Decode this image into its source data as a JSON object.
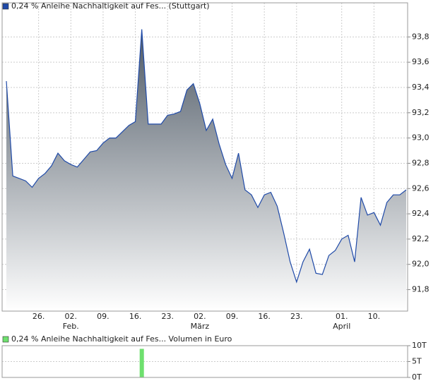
{
  "chart_data": [
    {
      "type": "area",
      "categories": [
        null,
        null,
        null,
        null,
        null,
        "26.",
        null,
        null,
        null,
        null,
        "02.",
        null,
        null,
        null,
        null,
        "09.",
        null,
        null,
        null,
        null,
        "16.",
        null,
        null,
        null,
        null,
        "23.",
        null,
        null,
        null,
        null,
        "02.",
        null,
        null,
        null,
        null,
        "09.",
        null,
        null,
        null,
        null,
        "16.",
        null,
        null,
        null,
        null,
        "23.",
        null,
        null,
        null,
        null,
        null,
        null,
        "01.",
        null,
        null,
        null,
        null,
        "10.",
        null,
        null,
        null,
        null,
        null
      ],
      "category_months": [
        null,
        null,
        null,
        null,
        null,
        null,
        null,
        null,
        null,
        null,
        "Feb.",
        null,
        null,
        null,
        null,
        null,
        null,
        null,
        null,
        null,
        null,
        null,
        null,
        null,
        null,
        null,
        null,
        null,
        null,
        null,
        "März",
        null,
        null,
        null,
        null,
        null,
        null,
        null,
        null,
        null,
        null,
        null,
        null,
        null,
        null,
        null,
        null,
        null,
        null,
        null,
        null,
        null,
        "April",
        null,
        null,
        null,
        null,
        null,
        null,
        null,
        null,
        null,
        null
      ],
      "series": [
        {
          "name": "0,24 % Anleihe Nachhaltigkeit auf Fes... (Stuttgart)",
          "color": "#1f4aa8",
          "values": [
            93.45,
            92.7,
            92.68,
            92.66,
            92.61,
            92.68,
            92.72,
            92.78,
            92.88,
            92.82,
            92.79,
            92.77,
            92.83,
            92.89,
            92.9,
            92.96,
            93.0,
            93.0,
            93.05,
            93.1,
            93.13,
            93.86,
            93.11,
            93.11,
            93.11,
            93.18,
            93.19,
            93.21,
            93.38,
            93.43,
            93.27,
            93.06,
            93.15,
            92.95,
            92.79,
            92.68,
            92.88,
            92.59,
            92.55,
            92.45,
            92.55,
            92.57,
            92.46,
            92.25,
            92.02,
            91.86,
            92.02,
            92.12,
            91.93,
            91.92,
            92.07,
            92.11,
            92.2,
            92.23,
            92.02,
            92.53,
            92.39,
            92.41,
            92.31,
            92.49,
            92.55,
            92.55,
            92.59
          ]
        }
      ],
      "ylim": [
        91.63,
        94.07
      ],
      "yticks": [
        {
          "value": 91.8,
          "label": "91,8"
        },
        {
          "value": 92.0,
          "label": "92,0"
        },
        {
          "value": 92.2,
          "label": "92,2"
        },
        {
          "value": 92.4,
          "label": "92,4"
        },
        {
          "value": 92.6,
          "label": "92,6"
        },
        {
          "value": 92.8,
          "label": "92,8"
        },
        {
          "value": 93.0,
          "label": "93,0"
        },
        {
          "value": 93.2,
          "label": "93,2"
        },
        {
          "value": 93.4,
          "label": "93,4"
        },
        {
          "value": 93.6,
          "label": "93,6"
        },
        {
          "value": 93.8,
          "label": "93,8"
        }
      ],
      "grid": true
    },
    {
      "type": "bar",
      "series": [
        {
          "name": "0,24 % Anleihe Nachhaltigkeit auf Fes... Volumen in Euro",
          "color": "#6ee06e",
          "values": [
            0,
            0,
            0,
            0,
            0,
            0,
            0,
            0,
            0,
            0,
            0,
            0,
            0,
            0,
            0,
            0,
            0,
            0,
            0,
            0,
            0,
            9000,
            0,
            0,
            0,
            0,
            0,
            0,
            0,
            0,
            0,
            0,
            0,
            0,
            0,
            0,
            0,
            0,
            0,
            0,
            0,
            0,
            0,
            0,
            0,
            0,
            0,
            0,
            0,
            0,
            0,
            0,
            0,
            0,
            0,
            0,
            0,
            0,
            0,
            0,
            0,
            0,
            0
          ]
        }
      ],
      "ylim": [
        0,
        10000
      ],
      "yticks": [
        {
          "value": 0,
          "label": "0T"
        },
        {
          "value": 5000,
          "label": "5T"
        },
        {
          "value": 10000,
          "label": "10T"
        }
      ],
      "grid": true
    }
  ]
}
